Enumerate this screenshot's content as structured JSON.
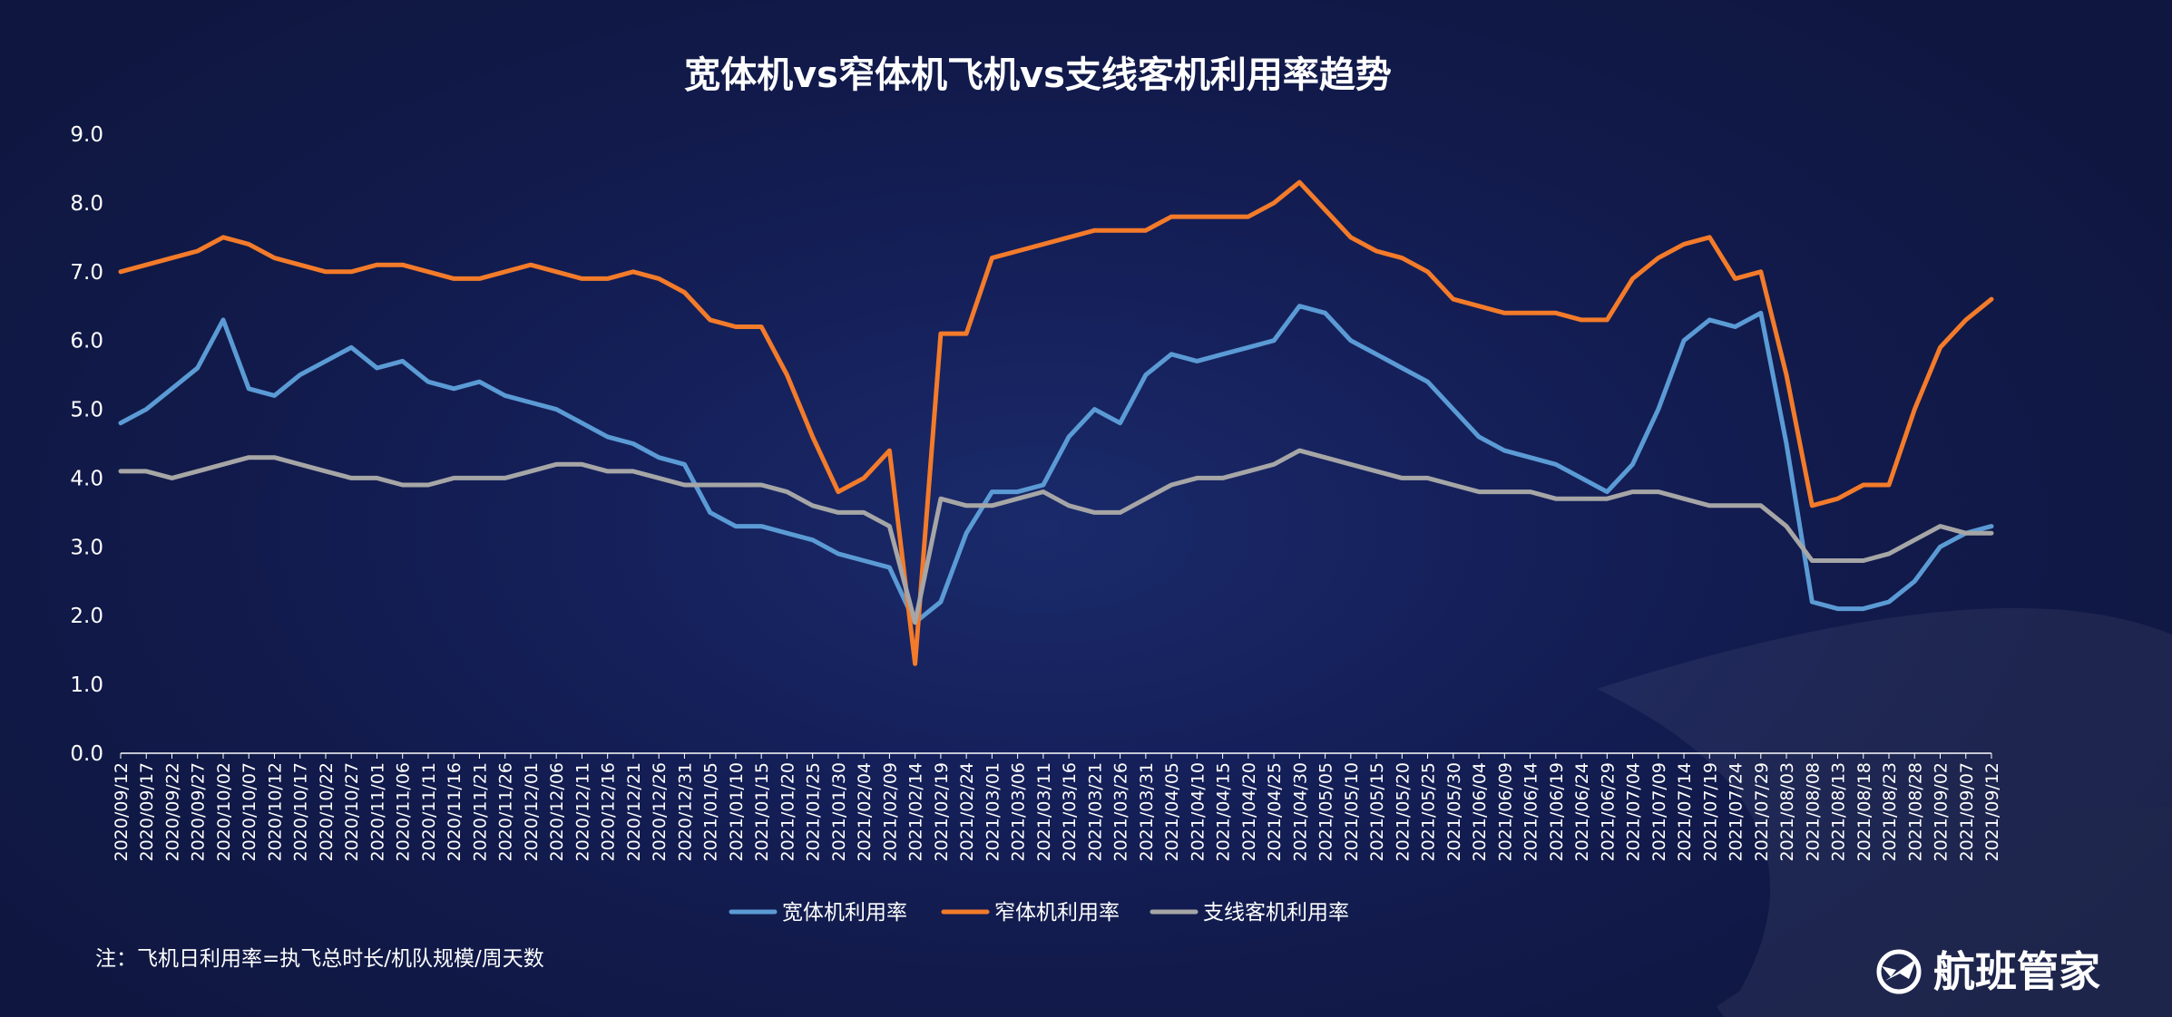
{
  "chart_data": {
    "type": "line",
    "title": "宽体机vs窄体机飞机vs支线客机利用率趋势",
    "ylim": [
      0,
      9
    ],
    "yticks": [
      "0.0",
      "1.0",
      "2.0",
      "3.0",
      "4.0",
      "5.0",
      "6.0",
      "7.0",
      "8.0",
      "9.0"
    ],
    "grid": false,
    "legend_position": "bottom",
    "x": [
      "2020/09/12",
      "2020/09/17",
      "2020/09/22",
      "2020/09/27",
      "2020/10/02",
      "2020/10/07",
      "2020/10/12",
      "2020/10/17",
      "2020/10/22",
      "2020/10/27",
      "2020/11/01",
      "2020/11/06",
      "2020/11/11",
      "2020/11/16",
      "2020/11/21",
      "2020/11/26",
      "2020/12/01",
      "2020/12/06",
      "2020/12/11",
      "2020/12/16",
      "2020/12/21",
      "2020/12/26",
      "2020/12/31",
      "2021/01/05",
      "2021/01/10",
      "2021/01/15",
      "2021/01/20",
      "2021/01/25",
      "2021/01/30",
      "2021/02/04",
      "2021/02/09",
      "2021/02/14",
      "2021/02/19",
      "2021/02/24",
      "2021/03/01",
      "2021/03/06",
      "2021/03/11",
      "2021/03/16",
      "2021/03/21",
      "2021/03/26",
      "2021/03/31",
      "2021/04/05",
      "2021/04/10",
      "2021/04/15",
      "2021/04/20",
      "2021/04/25",
      "2021/04/30",
      "2021/05/05",
      "2021/05/10",
      "2021/05/15",
      "2021/05/20",
      "2021/05/25",
      "2021/05/30",
      "2021/06/04",
      "2021/06/09",
      "2021/06/14",
      "2021/06/19",
      "2021/06/24",
      "2021/06/29",
      "2021/07/04",
      "2021/07/09",
      "2021/07/14",
      "2021/07/19",
      "2021/07/24",
      "2021/07/29",
      "2021/08/03",
      "2021/08/08",
      "2021/08/13",
      "2021/08/18",
      "2021/08/23",
      "2021/08/28",
      "2021/09/02",
      "2021/09/07",
      "2021/09/12"
    ],
    "series": [
      {
        "name": "宽体机利用率",
        "color": "#5b9bd5",
        "values": [
          4.8,
          5.0,
          5.3,
          5.6,
          6.3,
          5.3,
          5.2,
          5.5,
          5.7,
          5.9,
          5.6,
          5.7,
          5.4,
          5.3,
          5.4,
          5.2,
          5.1,
          5.0,
          4.8,
          4.6,
          4.5,
          4.3,
          4.2,
          3.5,
          3.3,
          3.3,
          3.2,
          3.1,
          2.9,
          2.8,
          2.7,
          1.9,
          2.2,
          3.2,
          3.8,
          3.8,
          3.9,
          4.6,
          5.0,
          4.8,
          5.5,
          5.8,
          5.7,
          5.8,
          5.9,
          6.0,
          6.5,
          6.4,
          6.0,
          5.8,
          5.6,
          5.4,
          5.0,
          4.6,
          4.4,
          4.3,
          4.2,
          4.0,
          3.8,
          4.2,
          5.0,
          6.0,
          6.3,
          6.2,
          6.4,
          4.5,
          2.2,
          2.1,
          2.1,
          2.2,
          2.5,
          3.0,
          3.2,
          3.3
        ]
      },
      {
        "name": "窄体机利用率",
        "color": "#f37b2a",
        "values": [
          7.0,
          7.1,
          7.2,
          7.3,
          7.5,
          7.4,
          7.2,
          7.1,
          7.0,
          7.0,
          7.1,
          7.1,
          7.0,
          6.9,
          6.9,
          7.0,
          7.1,
          7.0,
          6.9,
          6.9,
          7.0,
          6.9,
          6.7,
          6.3,
          6.2,
          6.2,
          5.5,
          4.6,
          3.8,
          4.0,
          4.4,
          1.3,
          6.1,
          6.1,
          7.2,
          7.3,
          7.4,
          7.5,
          7.6,
          7.6,
          7.6,
          7.8,
          7.8,
          7.8,
          7.8,
          8.0,
          8.3,
          7.9,
          7.5,
          7.3,
          7.2,
          7.0,
          6.6,
          6.5,
          6.4,
          6.4,
          6.4,
          6.3,
          6.3,
          6.9,
          7.2,
          7.4,
          7.5,
          6.9,
          7.0,
          5.5,
          3.6,
          3.7,
          3.9,
          3.9,
          5.0,
          5.9,
          6.3,
          6.6
        ]
      },
      {
        "name": "支线客机利用率",
        "color": "#a6a6a6",
        "values": [
          4.1,
          4.1,
          4.0,
          4.1,
          4.2,
          4.3,
          4.3,
          4.2,
          4.1,
          4.0,
          4.0,
          3.9,
          3.9,
          4.0,
          4.0,
          4.0,
          4.1,
          4.2,
          4.2,
          4.1,
          4.1,
          4.0,
          3.9,
          3.9,
          3.9,
          3.9,
          3.8,
          3.6,
          3.5,
          3.5,
          3.3,
          1.9,
          3.7,
          3.6,
          3.6,
          3.7,
          3.8,
          3.6,
          3.5,
          3.5,
          3.7,
          3.9,
          4.0,
          4.0,
          4.1,
          4.2,
          4.4,
          4.3,
          4.2,
          4.1,
          4.0,
          4.0,
          3.9,
          3.8,
          3.8,
          3.8,
          3.7,
          3.7,
          3.7,
          3.8,
          3.8,
          3.7,
          3.6,
          3.6,
          3.6,
          3.3,
          2.8,
          2.8,
          2.8,
          2.9,
          3.1,
          3.3,
          3.2,
          3.2
        ]
      }
    ],
    "note": "注：飞机日利用率=执飞总时长/机队规模/周天数"
  },
  "brand": {
    "name": "航班管家",
    "icon": "airplane-circle-icon"
  }
}
